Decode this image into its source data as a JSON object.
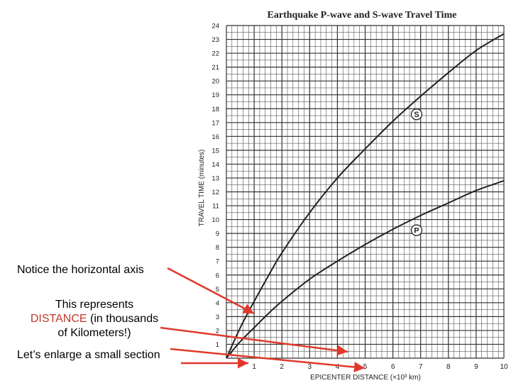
{
  "notes": {
    "axis": "Notice the horizontal axis",
    "represents_line1": "This represents",
    "represents_highlight": "DISTANCE",
    "represents_rest1": " (in thousands",
    "represents_line3": "of Kilometers!)",
    "enlarge": "Let’s enlarge a small section"
  },
  "colors": {
    "highlight": "#c0392b",
    "arrow": "#e0392b",
    "grid": "#333333",
    "curve": "#222222"
  },
  "chart_data": {
    "type": "line",
    "title": "Earthquake P-wave and S-wave Travel Time",
    "xlabel": "EPICENTER DISTANCE (×10³ km)",
    "ylabel": "TRAVEL TIME (minutes)",
    "xlim": [
      0,
      10
    ],
    "ylim": [
      0,
      24
    ],
    "xticks": [
      "1",
      "2",
      "3",
      "4",
      "5",
      "6",
      "7",
      "8",
      "9",
      "10"
    ],
    "yticks": [
      "1",
      "2",
      "3",
      "4",
      "5",
      "6",
      "7",
      "8",
      "9",
      "10",
      "11",
      "12",
      "13",
      "14",
      "15",
      "16",
      "17",
      "18",
      "19",
      "20",
      "21",
      "22",
      "23",
      "24"
    ],
    "grid": true,
    "series": [
      {
        "name": "S",
        "x": [
          0,
          0.5,
          1,
          1.5,
          2,
          3,
          4,
          5,
          6,
          7,
          8,
          9,
          10
        ],
        "values": [
          0,
          2.2,
          4.1,
          5.9,
          7.6,
          10.5,
          13.0,
          15.1,
          17.1,
          18.9,
          20.6,
          22.2,
          23.4
        ]
      },
      {
        "name": "P",
        "x": [
          0,
          0.5,
          1,
          1.5,
          2,
          3,
          4,
          5,
          6,
          7,
          8,
          9,
          10
        ],
        "values": [
          0,
          1.2,
          2.2,
          3.2,
          4.1,
          5.7,
          7.0,
          8.2,
          9.3,
          10.3,
          11.2,
          12.1,
          12.8
        ]
      }
    ]
  }
}
